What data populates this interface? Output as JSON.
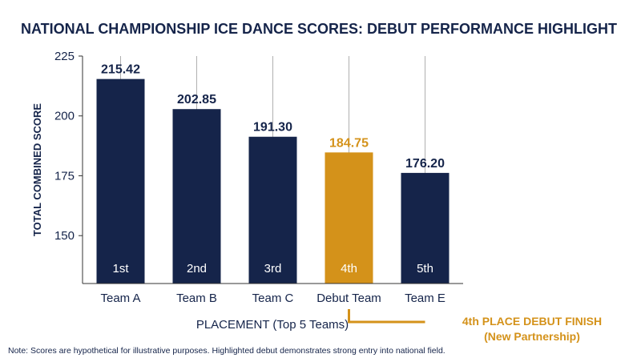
{
  "chart_data": {
    "type": "bar",
    "title": "NATIONAL CHAMPIONSHIP ICE DANCE SCORES: DEBUT PERFORMANCE HIGHLIGHT",
    "xlabel": "PLACEMENT (Top 5 Teams)",
    "ylabel": "TOTAL COMBINED SCORE",
    "categories": [
      "Team A",
      "Team B",
      "Team C",
      "Debut Team",
      "Team E"
    ],
    "values": [
      215.42,
      202.85,
      191.3,
      184.75,
      176.2
    ],
    "value_labels": [
      "215.42",
      "202.85",
      "191.30",
      "184.75",
      "176.20"
    ],
    "placements": [
      "1st",
      "2nd",
      "3rd",
      "4th",
      "5th"
    ],
    "highlight_index": 3,
    "ylim": [
      130,
      225
    ],
    "y_ticks": [
      150,
      175,
      200,
      225
    ],
    "grid": "vertical",
    "colors": {
      "bar": "#15244a",
      "highlight": "#d4921a",
      "text": "#15244a",
      "grid": "#b0b0b0",
      "axis": "#333333"
    },
    "annotation": {
      "line1": "4th PLACE DEBUT FINISH",
      "line2": "(New Partnership)"
    },
    "note": "Note: Scores are hypothetical for illustrative purposes. Highlighted debut demonstrates strong entry into national field."
  }
}
